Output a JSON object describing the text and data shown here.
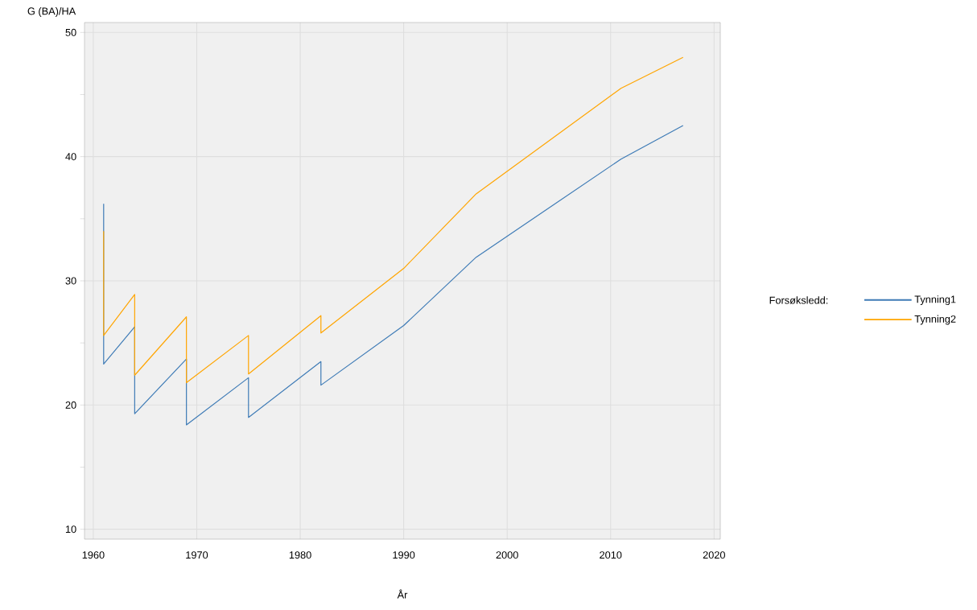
{
  "chart_data": {
    "type": "line",
    "xlabel": "År",
    "ylabel": "G (BA)/HA",
    "legend_title": "Forsøksledd:",
    "series": [
      {
        "name": "Tynning1",
        "color": "#3e7bb6",
        "x": [
          1961,
          1961,
          1964,
          1964,
          1969,
          1969,
          1975,
          1975,
          1982,
          1982,
          1990,
          1997,
          2011,
          2017
        ],
        "values": [
          36.2,
          23.3,
          26.3,
          19.3,
          23.7,
          18.4,
          22.2,
          19.0,
          23.5,
          21.6,
          26.4,
          31.9,
          39.8,
          42.5
        ]
      },
      {
        "name": "Tynning2",
        "color": "#ffa500",
        "x": [
          1961,
          1961,
          1964,
          1964,
          1969,
          1969,
          1975,
          1975,
          1982,
          1982,
          1990,
          1997,
          2011,
          2017
        ],
        "values": [
          34.0,
          25.6,
          28.9,
          22.4,
          27.1,
          21.8,
          25.6,
          22.5,
          27.2,
          25.8,
          31.0,
          37.0,
          45.5,
          48.0
        ]
      }
    ],
    "xlim": [
      1959.15,
      2020.6
    ],
    "ylim": [
      9.2,
      50.8
    ],
    "xticks": [
      1960,
      1970,
      1980,
      1990,
      2000,
      2010,
      2020
    ],
    "yticks": [
      10,
      {
        "value": 15,
        "label": null
      },
      20,
      {
        "value": 25,
        "label": null
      },
      30,
      {
        "value": 35,
        "label": null
      },
      40,
      {
        "value": 45,
        "label": null
      },
      50
    ],
    "grid": true,
    "legend": "right",
    "marker": "none",
    "line_style": "solid"
  }
}
